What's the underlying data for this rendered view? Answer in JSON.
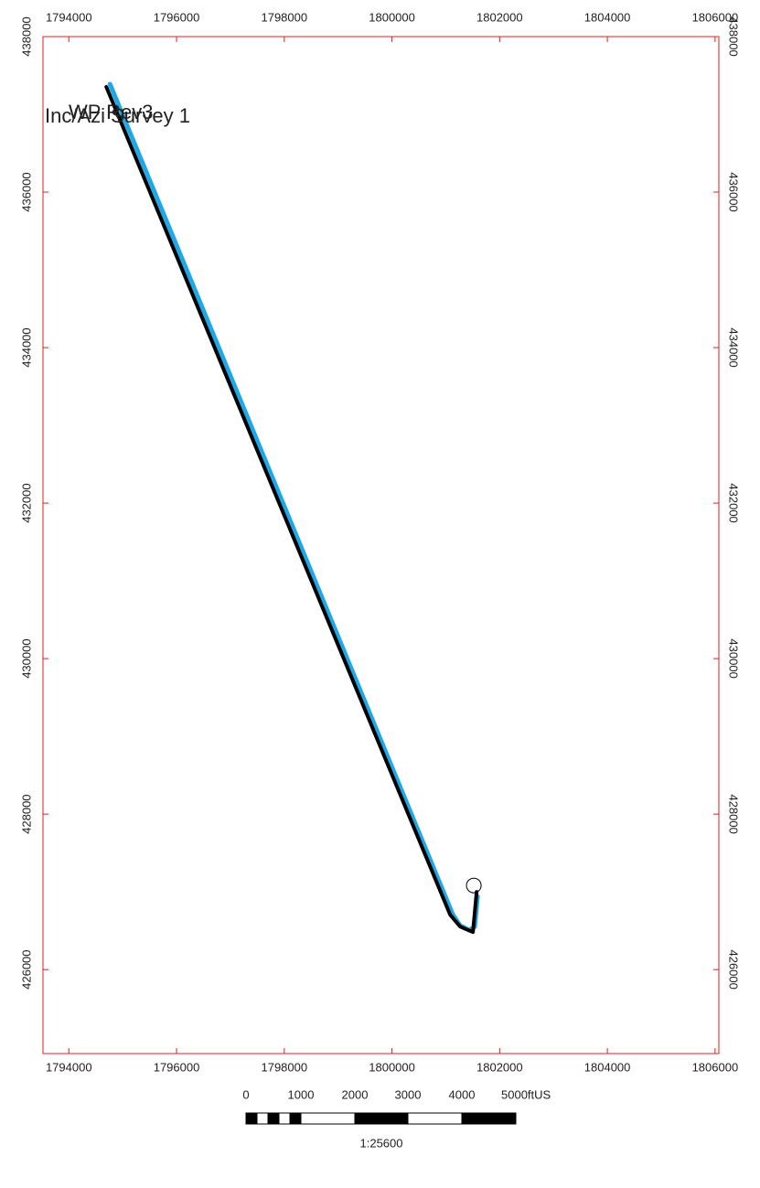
{
  "chart_data": {
    "type": "line",
    "annotations": [
      "Inc/Azi Survey 1",
      "WP Rev3"
    ],
    "xlim": [
      1793520,
      1806070
    ],
    "ylim": [
      424920,
      438000
    ],
    "xticks": [
      1794000,
      1796000,
      1798000,
      1800000,
      1802000,
      1804000,
      1806000
    ],
    "yticks": [
      426000,
      428000,
      430000,
      432000,
      434000,
      436000,
      438000
    ],
    "frame_color": "#e0201e",
    "series": [
      {
        "name": "WP Rev3",
        "color": "#1fa8e8",
        "x": [
          1794764,
          1801131,
          1801267,
          1801436,
          1801537,
          1801589
        ],
        "y": [
          437388,
          426706,
          426565,
          426506,
          426553,
          426941
        ]
      },
      {
        "name": "Inc/Azi Survey 1",
        "color": "#000000",
        "x": [
          1794696,
          1801080,
          1801267,
          1801504,
          1801572
        ],
        "y": [
          437353,
          426706,
          426553,
          426482,
          426999
        ]
      }
    ],
    "target": {
      "x": 1801520,
      "y": 427082
    },
    "scale_bar": {
      "labels": [
        "0",
        "1000",
        "2000",
        "3000",
        "4000",
        "5000ftUS"
      ],
      "ratio": "1:25600"
    }
  }
}
